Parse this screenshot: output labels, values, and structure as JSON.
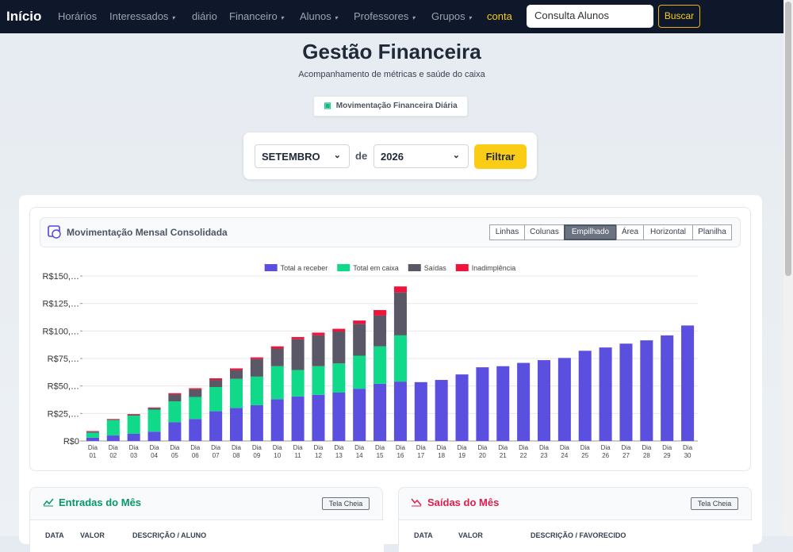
{
  "nav": {
    "brand": "Início",
    "items": [
      "Horários",
      "Interessados",
      "diário",
      "Financeiro",
      "Alunos",
      "Professores",
      "Grupos",
      "conta"
    ],
    "search_placeholder": "Consulta Alunos",
    "search_button": "Buscar"
  },
  "header": {
    "title": "Gestão Financeira",
    "subtitle": "Acompanhamento de métricas e saúde do caixa",
    "daily_button": "Movimentação Financeira Diária"
  },
  "filter": {
    "month": "SETEMBRO",
    "connector": "de",
    "year": "2026",
    "button": "Filtrar"
  },
  "panel": {
    "title": "Movimentação Mensal Consolidada",
    "view_buttons": [
      "Linhas",
      "Colunas",
      "Empilhado",
      "Área",
      "Horizontal",
      "Planilha"
    ]
  },
  "chart_data": {
    "type": "stacked_bar",
    "categories": [
      "Dia 01",
      "Dia 02",
      "Dia 03",
      "Dia 04",
      "Dia 05",
      "Dia 06",
      "Dia 07",
      "Dia 08",
      "Dia 09",
      "Dia 10",
      "Dia 11",
      "Dia 12",
      "Dia 13",
      "Dia 14",
      "Dia 15",
      "Dia 16",
      "Dia 17",
      "Dia 18",
      "Dia 19",
      "Dia 20",
      "Dia 21",
      "Dia 22",
      "Dia 23",
      "Dia 24",
      "Dia 25",
      "Dia 26",
      "Dia 27",
      "Dia 28",
      "Dia 29",
      "Dia 30"
    ],
    "series": [
      {
        "name": "Total a receber",
        "color": "#5b4fe0",
        "values": [
          3000,
          5000,
          6500,
          8500,
          17000,
          20000,
          27000,
          30000,
          32500,
          38000,
          40500,
          42000,
          44000,
          47500,
          52000,
          54000,
          53500,
          55500,
          60500,
          67000,
          68000,
          71000,
          73500,
          75500,
          82000,
          85000,
          88500,
          91500,
          96000,
          105000
        ]
      },
      {
        "name": "Total em caixa",
        "color": "#10d98a",
        "values": [
          4500,
          14000,
          16500,
          20000,
          19000,
          20000,
          22000,
          26500,
          26000,
          30000,
          24000,
          26000,
          26500,
          30000,
          34000,
          42000,
          0,
          0,
          0,
          0,
          0,
          0,
          0,
          0,
          0,
          0,
          0,
          0,
          0,
          0
        ]
      },
      {
        "name": "Saídas",
        "color": "#5a5866",
        "values": [
          1000,
          500,
          1000,
          1500,
          6500,
          7000,
          6500,
          8000,
          16000,
          16000,
          28000,
          28000,
          29000,
          29000,
          28000,
          39000,
          0,
          0,
          0,
          0,
          0,
          0,
          0,
          0,
          0,
          0,
          0,
          0,
          0,
          0
        ]
      },
      {
        "name": "Inadimplência",
        "color": "#f0143c",
        "values": [
          500,
          500,
          500,
          500,
          1000,
          1000,
          1500,
          1500,
          1500,
          2000,
          2000,
          2500,
          2500,
          3000,
          5000,
          5500,
          0,
          0,
          0,
          0,
          0,
          0,
          0,
          0,
          0,
          0,
          0,
          0,
          0,
          0
        ]
      }
    ],
    "ylim": [
      0,
      150000
    ],
    "yticks": [
      {
        "value": 0,
        "label": "R$0"
      },
      {
        "value": 25000,
        "label": "R$25,…"
      },
      {
        "value": 50000,
        "label": "R$50,…"
      },
      {
        "value": 75000,
        "label": "R$75,…"
      },
      {
        "value": 100000,
        "label": "R$100,…"
      },
      {
        "value": 125000,
        "label": "R$125,…"
      },
      {
        "value": 150000,
        "label": "R$150,…"
      }
    ],
    "grid": true
  },
  "entradas": {
    "title": "Entradas do Mês",
    "fullscreen_button": "Tela Cheia",
    "columns": [
      "DATA",
      "VALOR",
      "DESCRIÇÃO / ALUNO"
    ]
  },
  "saidas": {
    "title": "Saídas do Mês",
    "fullscreen_button": "Tela Cheia",
    "columns": [
      "DATA",
      "VALOR",
      "DESCRIÇÃO / FAVORECIDO"
    ]
  }
}
